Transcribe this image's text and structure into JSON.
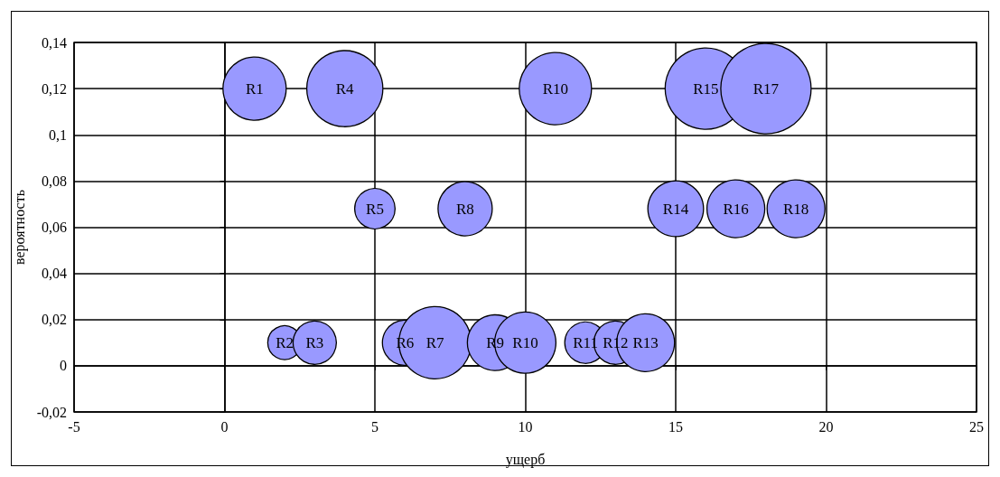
{
  "chart_data": {
    "type": "bubble",
    "xlabel": "ущерб",
    "ylabel": "вероятность",
    "x": [
      1,
      2,
      3,
      4,
      5,
      6,
      7,
      8,
      9,
      10,
      11,
      12,
      13,
      14,
      15,
      16,
      17,
      18,
      19
    ],
    "values": [
      0.12,
      0.01,
      0.01,
      0.12,
      0.068,
      0.01,
      0.01,
      0.068,
      0.01,
      0.01,
      0.12,
      0.01,
      0.01,
      0.01,
      0.068,
      0.12,
      0.068,
      0.12,
      0.068
    ],
    "sizes": [
      0.49,
      0.14,
      0.23,
      0.71,
      0.2,
      0.25,
      0.64,
      0.36,
      0.38,
      0.46,
      0.64,
      0.21,
      0.23,
      0.41,
      0.38,
      0.81,
      0.41,
      1,
      0.41
    ],
    "value_labels": [
      "R1",
      "R2",
      "R3",
      "R4",
      "R5",
      "R6",
      "R7",
      "R8",
      "R9",
      "R10",
      "R10",
      "R11",
      "R12",
      "R13",
      "R14",
      "R15",
      "R16",
      "R17",
      "R18"
    ],
    "color": "#9999ff",
    "xlim": [
      -5,
      25
    ],
    "xticks": [
      -5,
      0,
      5,
      10,
      15,
      20,
      25
    ],
    "ylim": [
      -0.02,
      0.14
    ],
    "yticks": [
      {
        "value": -0.02,
        "label": "-0,02"
      },
      {
        "value": 0,
        "label": "0"
      },
      {
        "value": 0.02,
        "label": "0,02"
      },
      {
        "value": 0.04,
        "label": "0,04"
      },
      {
        "value": 0.06,
        "label": "0,06"
      },
      {
        "value": 0.08,
        "label": "0,08"
      },
      {
        "value": 0.1,
        "label": "0,1"
      },
      {
        "value": 0.12,
        "label": "0,12"
      },
      {
        "value": 0.14,
        "label": "0,14"
      }
    ],
    "grid": true
  }
}
